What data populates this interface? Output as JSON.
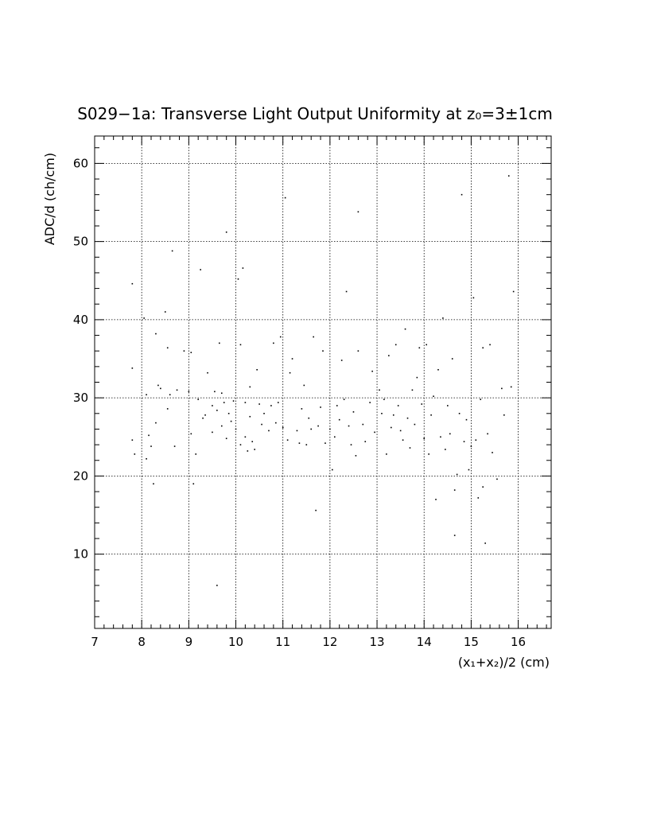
{
  "chart_data": {
    "type": "scatter",
    "title": "S029−1a: Transverse Light Output Uniformity at z₀=3±1cm",
    "xlabel": "(x₁+x₂)/2 (cm)",
    "ylabel": "ADC/d (ch/cm)",
    "xlim": [
      7,
      16.7
    ],
    "ylim": [
      0.5,
      63.5
    ],
    "x_ticks": [
      7,
      8,
      9,
      10,
      11,
      12,
      13,
      14,
      15,
      16
    ],
    "y_ticks": [
      10,
      20,
      30,
      40,
      50,
      60
    ],
    "grid": true,
    "legend": "none",
    "marker_color": "#000000",
    "points": [
      [
        7.8,
        44.6
      ],
      [
        7.8,
        33.8
      ],
      [
        7.85,
        22.8
      ],
      [
        7.8,
        24.6
      ],
      [
        8.05,
        40.2
      ],
      [
        8.1,
        30.4
      ],
      [
        8.1,
        22.2
      ],
      [
        8.15,
        25.2
      ],
      [
        8.2,
        23.8
      ],
      [
        8.25,
        19.0
      ],
      [
        8.3,
        38.2
      ],
      [
        8.3,
        26.8
      ],
      [
        8.35,
        31.6
      ],
      [
        8.4,
        31.2
      ],
      [
        8.5,
        41.0
      ],
      [
        8.55,
        36.4
      ],
      [
        8.55,
        28.6
      ],
      [
        8.6,
        30.4
      ],
      [
        8.65,
        48.8
      ],
      [
        8.7,
        23.8
      ],
      [
        8.75,
        31.0
      ],
      [
        8.9,
        36.0
      ],
      [
        9.0,
        30.8
      ],
      [
        9.05,
        25.4
      ],
      [
        9.05,
        35.8
      ],
      [
        9.1,
        19.0
      ],
      [
        9.15,
        22.8
      ],
      [
        9.2,
        29.8
      ],
      [
        9.25,
        46.4
      ],
      [
        9.3,
        27.4
      ],
      [
        9.35,
        27.8
      ],
      [
        9.4,
        33.2
      ],
      [
        9.5,
        25.6
      ],
      [
        9.5,
        29.0
      ],
      [
        9.55,
        30.8
      ],
      [
        9.6,
        28.4
      ],
      [
        9.6,
        6.0
      ],
      [
        9.65,
        37.0
      ],
      [
        9.7,
        26.4
      ],
      [
        9.7,
        30.6
      ],
      [
        9.75,
        29.4
      ],
      [
        9.8,
        51.2
      ],
      [
        9.8,
        24.8
      ],
      [
        9.85,
        28.0
      ],
      [
        9.9,
        27.0
      ],
      [
        9.95,
        29.6
      ],
      [
        10.0,
        26.0
      ],
      [
        10.05,
        45.2
      ],
      [
        10.1,
        24.0
      ],
      [
        10.1,
        36.8
      ],
      [
        10.15,
        46.6
      ],
      [
        10.2,
        25.0
      ],
      [
        10.2,
        29.4
      ],
      [
        10.25,
        23.2
      ],
      [
        10.3,
        27.6
      ],
      [
        10.3,
        31.4
      ],
      [
        10.35,
        24.4
      ],
      [
        10.4,
        23.4
      ],
      [
        10.45,
        33.6
      ],
      [
        10.5,
        29.2
      ],
      [
        10.55,
        26.6
      ],
      [
        10.6,
        28.0
      ],
      [
        10.7,
        25.8
      ],
      [
        10.75,
        29.0
      ],
      [
        10.8,
        37.0
      ],
      [
        10.85,
        26.8
      ],
      [
        10.9,
        29.4
      ],
      [
        10.95,
        37.8
      ],
      [
        11.0,
        26.2
      ],
      [
        11.05,
        55.6
      ],
      [
        11.1,
        24.6
      ],
      [
        11.15,
        33.2
      ],
      [
        11.2,
        35.0
      ],
      [
        11.3,
        25.8
      ],
      [
        11.35,
        24.2
      ],
      [
        11.4,
        28.6
      ],
      [
        11.45,
        31.6
      ],
      [
        11.5,
        24.0
      ],
      [
        11.55,
        27.4
      ],
      [
        11.6,
        26.0
      ],
      [
        11.65,
        37.8
      ],
      [
        11.7,
        15.6
      ],
      [
        11.75,
        26.4
      ],
      [
        11.8,
        28.8
      ],
      [
        11.85,
        36.0
      ],
      [
        11.9,
        24.2
      ],
      [
        12.0,
        26.0
      ],
      [
        12.05,
        20.8
      ],
      [
        12.1,
        25.0
      ],
      [
        12.15,
        29.0
      ],
      [
        12.2,
        27.2
      ],
      [
        12.25,
        34.8
      ],
      [
        12.3,
        29.8
      ],
      [
        12.35,
        43.6
      ],
      [
        12.4,
        26.4
      ],
      [
        12.45,
        24.0
      ],
      [
        12.5,
        28.2
      ],
      [
        12.55,
        22.6
      ],
      [
        12.6,
        53.8
      ],
      [
        12.6,
        36.0
      ],
      [
        12.7,
        26.6
      ],
      [
        12.75,
        24.4
      ],
      [
        12.85,
        29.4
      ],
      [
        12.9,
        33.4
      ],
      [
        12.95,
        25.6
      ],
      [
        13.05,
        31.0
      ],
      [
        13.1,
        28.0
      ],
      [
        13.15,
        29.8
      ],
      [
        13.2,
        22.8
      ],
      [
        13.25,
        35.4
      ],
      [
        13.3,
        26.2
      ],
      [
        13.35,
        27.8
      ],
      [
        13.4,
        36.8
      ],
      [
        13.45,
        29.0
      ],
      [
        13.5,
        25.8
      ],
      [
        13.55,
        24.6
      ],
      [
        13.6,
        38.8
      ],
      [
        13.65,
        27.4
      ],
      [
        13.7,
        23.6
      ],
      [
        13.75,
        31.0
      ],
      [
        13.8,
        26.6
      ],
      [
        13.85,
        32.6
      ],
      [
        13.9,
        36.4
      ],
      [
        13.95,
        29.2
      ],
      [
        14.0,
        24.8
      ],
      [
        14.05,
        36.8
      ],
      [
        14.1,
        22.8
      ],
      [
        14.15,
        27.8
      ],
      [
        14.2,
        30.2
      ],
      [
        14.25,
        17.0
      ],
      [
        14.3,
        33.6
      ],
      [
        14.35,
        25.0
      ],
      [
        14.4,
        40.2
      ],
      [
        14.45,
        23.4
      ],
      [
        14.5,
        29.0
      ],
      [
        14.55,
        25.4
      ],
      [
        14.6,
        35.0
      ],
      [
        14.65,
        18.2
      ],
      [
        14.65,
        12.4
      ],
      [
        14.7,
        20.2
      ],
      [
        14.75,
        28.0
      ],
      [
        14.8,
        56.0
      ],
      [
        14.85,
        24.4
      ],
      [
        14.9,
        27.2
      ],
      [
        14.95,
        20.8
      ],
      [
        15.0,
        23.8
      ],
      [
        15.05,
        42.8
      ],
      [
        15.1,
        24.6
      ],
      [
        15.15,
        17.2
      ],
      [
        15.2,
        29.8
      ],
      [
        15.25,
        36.4
      ],
      [
        15.25,
        18.6
      ],
      [
        15.3,
        11.4
      ],
      [
        15.35,
        25.4
      ],
      [
        15.4,
        36.8
      ],
      [
        15.45,
        23.0
      ],
      [
        15.55,
        19.6
      ],
      [
        15.65,
        31.2
      ],
      [
        15.7,
        27.8
      ],
      [
        15.8,
        58.4
      ],
      [
        15.85,
        31.4
      ],
      [
        15.9,
        43.6
      ]
    ]
  }
}
